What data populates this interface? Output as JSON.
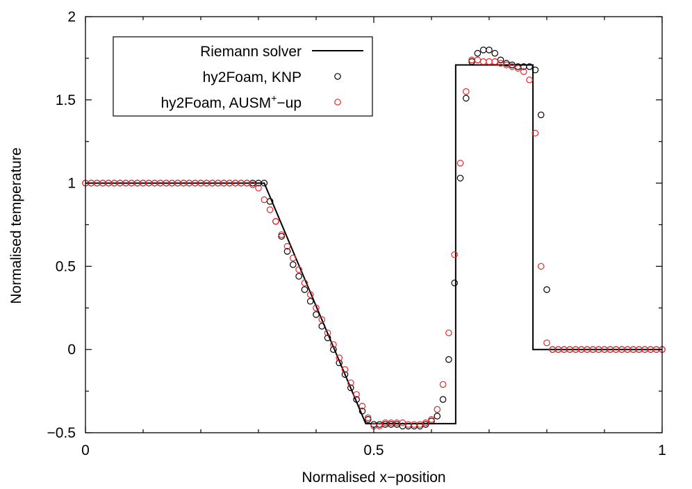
{
  "chart_data": {
    "type": "scatter",
    "xlabel": "Normalised x−position",
    "ylabel": "Normalised temperature",
    "xlim": [
      0,
      1
    ],
    "ylim": [
      -0.5,
      2
    ],
    "legend_position": "top-left",
    "x_ticks": [
      {
        "value": 0,
        "label": "0"
      },
      {
        "value": 0.5,
        "label": "0.5"
      },
      {
        "value": 1,
        "label": "1"
      }
    ],
    "y_ticks": [
      {
        "value": -0.5,
        "label": "−0.5"
      },
      {
        "value": 0,
        "label": "0"
      },
      {
        "value": 0.5,
        "label": "0.5"
      },
      {
        "value": 1,
        "label": "1"
      },
      {
        "value": 1.5,
        "label": "1.5"
      },
      {
        "value": 2,
        "label": "2"
      }
    ],
    "series": [
      {
        "name": "Riemann solver",
        "kind": "line",
        "color": "#000000",
        "x": [
          0,
          0.31,
          0.486,
          0.642,
          0.642,
          0.776,
          0.776,
          1.0
        ],
        "y": [
          1.0,
          1.0,
          -0.445,
          -0.445,
          1.71,
          1.71,
          0.0,
          0.0
        ]
      },
      {
        "name": "hy2Foam, KNP",
        "kind": "markers",
        "color": "#000000",
        "x": [
          0.0,
          0.01,
          0.02,
          0.03,
          0.04,
          0.05,
          0.06,
          0.07,
          0.08,
          0.09,
          0.1,
          0.11,
          0.12,
          0.13,
          0.14,
          0.15,
          0.16,
          0.17,
          0.18,
          0.19,
          0.2,
          0.21,
          0.22,
          0.23,
          0.24,
          0.25,
          0.26,
          0.27,
          0.28,
          0.29,
          0.3,
          0.31,
          0.32,
          0.33,
          0.34,
          0.35,
          0.36,
          0.37,
          0.38,
          0.39,
          0.4,
          0.41,
          0.42,
          0.43,
          0.44,
          0.45,
          0.46,
          0.47,
          0.48,
          0.49,
          0.5,
          0.51,
          0.52,
          0.53,
          0.54,
          0.55,
          0.56,
          0.57,
          0.58,
          0.59,
          0.6,
          0.61,
          0.62,
          0.63,
          0.64,
          0.65,
          0.66,
          0.67,
          0.68,
          0.69,
          0.7,
          0.71,
          0.72,
          0.73,
          0.74,
          0.75,
          0.76,
          0.77,
          0.78,
          0.79,
          0.8,
          0.81,
          0.82,
          0.83,
          0.84,
          0.85,
          0.86,
          0.87,
          0.88,
          0.89,
          0.9,
          0.91,
          0.92,
          0.93,
          0.94,
          0.95,
          0.96,
          0.97,
          0.98,
          0.99,
          1.0
        ],
        "y": [
          1.0,
          1.0,
          1.0,
          1.0,
          1.0,
          1.0,
          1.0,
          1.0,
          1.0,
          1.0,
          1.0,
          1.0,
          1.0,
          1.0,
          1.0,
          1.0,
          1.0,
          1.0,
          1.0,
          1.0,
          1.0,
          1.0,
          1.0,
          1.0,
          1.0,
          1.0,
          1.0,
          1.0,
          1.0,
          1.0,
          1.0,
          1.0,
          0.89,
          0.77,
          0.68,
          0.59,
          0.51,
          0.44,
          0.36,
          0.29,
          0.21,
          0.14,
          0.07,
          0.0,
          -0.08,
          -0.15,
          -0.23,
          -0.3,
          -0.37,
          -0.42,
          -0.45,
          -0.45,
          -0.45,
          -0.45,
          -0.45,
          -0.46,
          -0.46,
          -0.46,
          -0.46,
          -0.45,
          -0.43,
          -0.4,
          -0.3,
          -0.06,
          0.4,
          1.03,
          1.51,
          1.73,
          1.78,
          1.8,
          1.8,
          1.78,
          1.74,
          1.72,
          1.71,
          1.7,
          1.7,
          1.7,
          1.68,
          1.41,
          0.36,
          0.0,
          0.0,
          0.0,
          0.0,
          0.0,
          0.0,
          0.0,
          0.0,
          0.0,
          0.0,
          0.0,
          0.0,
          0.0,
          0.0,
          0.0,
          0.0,
          0.0,
          0.0,
          0.0,
          0.0
        ]
      },
      {
        "name": "hy2Foam, AUSM",
        "name_sup": "+",
        "name_suffix": "−up",
        "kind": "markers",
        "color": "#e8262a",
        "x": [
          0.0,
          0.01,
          0.02,
          0.03,
          0.04,
          0.05,
          0.06,
          0.07,
          0.08,
          0.09,
          0.1,
          0.11,
          0.12,
          0.13,
          0.14,
          0.15,
          0.16,
          0.17,
          0.18,
          0.19,
          0.2,
          0.21,
          0.22,
          0.23,
          0.24,
          0.25,
          0.26,
          0.27,
          0.28,
          0.29,
          0.3,
          0.31,
          0.32,
          0.33,
          0.34,
          0.35,
          0.36,
          0.37,
          0.38,
          0.39,
          0.4,
          0.41,
          0.42,
          0.43,
          0.44,
          0.45,
          0.46,
          0.47,
          0.48,
          0.49,
          0.5,
          0.51,
          0.52,
          0.53,
          0.54,
          0.55,
          0.56,
          0.57,
          0.58,
          0.59,
          0.6,
          0.61,
          0.62,
          0.63,
          0.64,
          0.65,
          0.66,
          0.67,
          0.68,
          0.69,
          0.7,
          0.71,
          0.72,
          0.73,
          0.74,
          0.75,
          0.76,
          0.77,
          0.78,
          0.79,
          0.8,
          0.81,
          0.82,
          0.83,
          0.84,
          0.85,
          0.86,
          0.87,
          0.88,
          0.89,
          0.9,
          0.91,
          0.92,
          0.93,
          0.94,
          0.95,
          0.96,
          0.97,
          0.98,
          0.99,
          1.0
        ],
        "y": [
          1.0,
          1.0,
          1.0,
          1.0,
          1.0,
          1.0,
          1.0,
          1.0,
          1.0,
          1.0,
          1.0,
          1.0,
          1.0,
          1.0,
          1.0,
          1.0,
          1.0,
          1.0,
          1.0,
          1.0,
          1.0,
          1.0,
          1.0,
          1.0,
          1.0,
          1.0,
          1.0,
          1.0,
          1.0,
          0.99,
          0.97,
          0.9,
          0.84,
          0.77,
          0.69,
          0.62,
          0.55,
          0.48,
          0.4,
          0.33,
          0.25,
          0.18,
          0.1,
          0.03,
          -0.05,
          -0.12,
          -0.2,
          -0.27,
          -0.34,
          -0.41,
          -0.46,
          -0.46,
          -0.44,
          -0.44,
          -0.44,
          -0.44,
          -0.45,
          -0.45,
          -0.45,
          -0.44,
          -0.42,
          -0.36,
          -0.21,
          0.1,
          0.57,
          1.12,
          1.55,
          1.74,
          1.74,
          1.73,
          1.73,
          1.73,
          1.72,
          1.71,
          1.7,
          1.69,
          1.67,
          1.62,
          1.3,
          0.5,
          0.04,
          0.0,
          0.0,
          0.0,
          0.0,
          0.0,
          0.0,
          0.0,
          0.0,
          0.0,
          0.0,
          0.0,
          0.0,
          0.0,
          0.0,
          0.0,
          0.0,
          0.0,
          0.0,
          0.0,
          0.0
        ]
      }
    ]
  }
}
